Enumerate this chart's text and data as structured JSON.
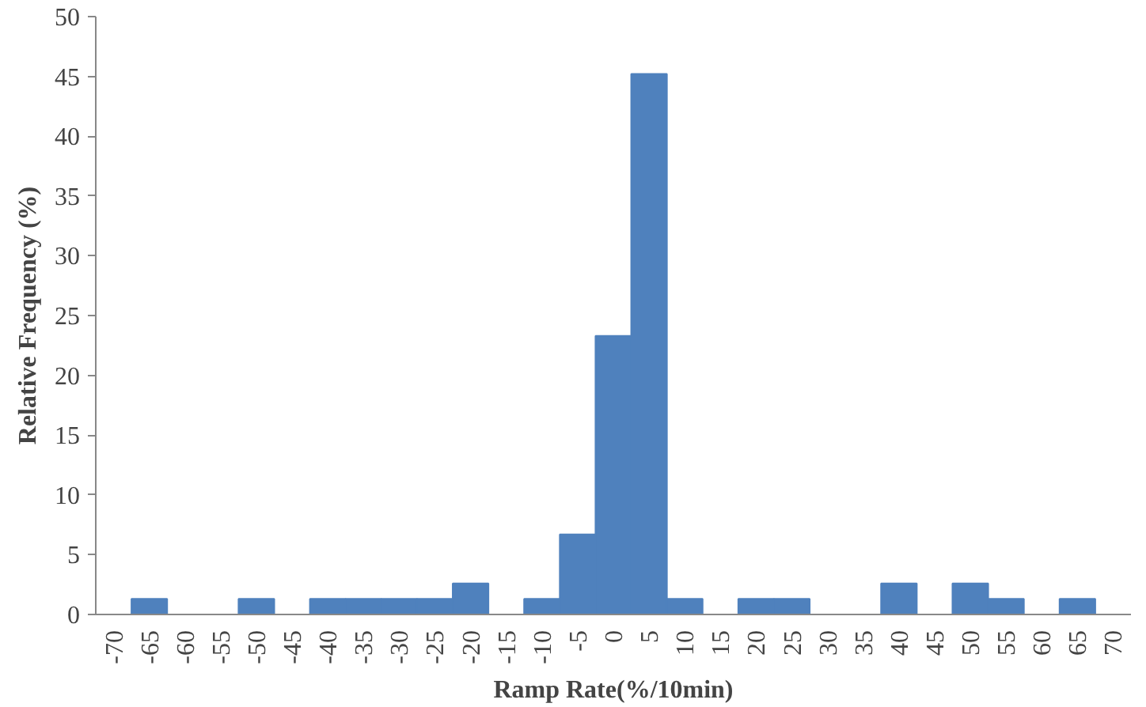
{
  "chart_data": {
    "type": "bar",
    "xlabel": "Ramp Rate(%/10min)",
    "ylabel": "Relative Frequency (%)",
    "categories": [
      "-70",
      "-65",
      "-60",
      "-55",
      "-50",
      "-45",
      "-40",
      "-35",
      "-30",
      "-25",
      "-20",
      "-15",
      "-10",
      "-5",
      "0",
      "5",
      "10",
      "15",
      "20",
      "25",
      "30",
      "35",
      "40",
      "45",
      "50",
      "55",
      "60",
      "65",
      "70"
    ],
    "values": [
      0,
      1.3,
      0,
      0,
      1.3,
      0,
      1.3,
      1.3,
      1.3,
      1.3,
      2.6,
      0,
      1.3,
      6.7,
      23.3,
      45.2,
      1.3,
      0,
      1.3,
      1.3,
      0,
      0,
      2.6,
      0,
      2.6,
      1.3,
      0,
      1.3,
      0
    ],
    "color": "#4f81bd",
    "ylim": [
      0,
      50
    ],
    "yticks": [
      0,
      5,
      10,
      15,
      20,
      25,
      30,
      35,
      40,
      45,
      50
    ],
    "grid": false
  }
}
